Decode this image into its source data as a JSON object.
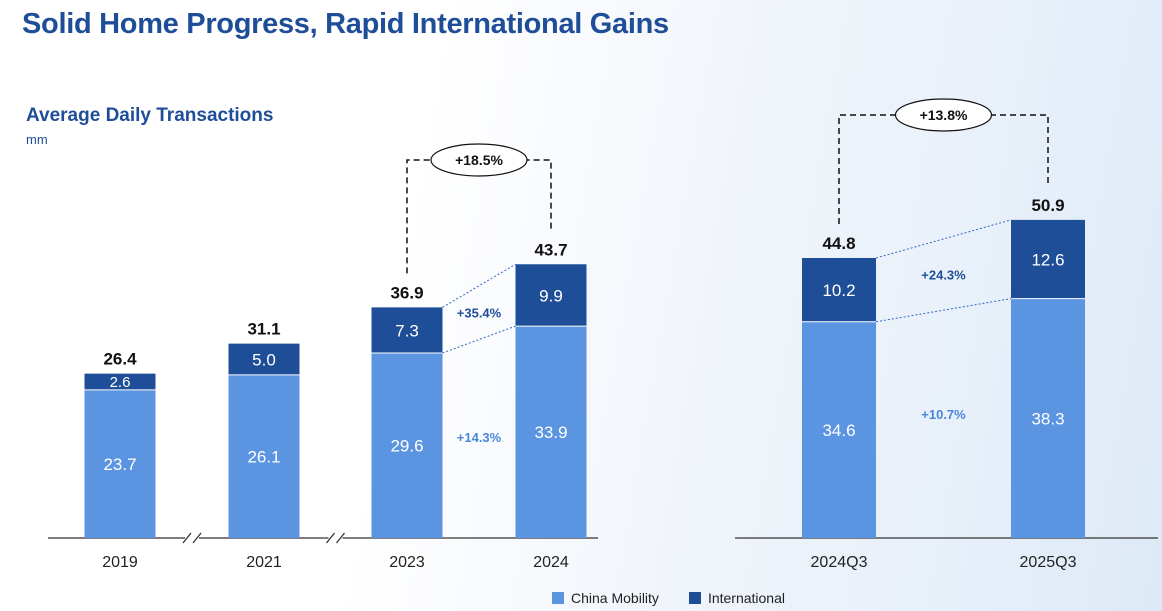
{
  "title": "Solid Home Progress, Rapid International Gains",
  "chart_data": {
    "type": "bar",
    "stacked": true,
    "subtitle": "Average Daily Transactions",
    "unit": "mm",
    "colors": {
      "China Mobility": "#5b94e0",
      "International": "#1f4e99"
    },
    "legend": {
      "position": "bottom",
      "entries": [
        "China Mobility",
        "International"
      ]
    },
    "panels": [
      {
        "categories": [
          "2019",
          "2021",
          "2023",
          "2024"
        ],
        "series": [
          {
            "name": "China Mobility",
            "values": [
              23.7,
              26.1,
              29.6,
              33.9
            ],
            "labels": [
              "23.7",
              "26.1",
              "29.6",
              "33.9"
            ]
          },
          {
            "name": "International",
            "values": [
              2.6,
              5.0,
              7.3,
              9.9
            ],
            "labels": [
              "2.6",
              "5.0",
              "7.3",
              "9.9"
            ]
          }
        ],
        "totals": [
          "26.4",
          "31.1",
          "36.9",
          "43.7"
        ],
        "axis_breaks_after": [
          "2019",
          "2021"
        ],
        "growth_total": "+18.5%",
        "growth_international": "+35.4%",
        "growth_china": "+14.3%"
      },
      {
        "categories": [
          "2024Q3",
          "2025Q3"
        ],
        "series": [
          {
            "name": "China Mobility",
            "values": [
              34.6,
              38.3
            ],
            "labels": [
              "34.6",
              "38.3"
            ]
          },
          {
            "name": "International",
            "values": [
              10.2,
              12.6
            ],
            "labels": [
              "10.2",
              "12.6"
            ]
          }
        ],
        "totals": [
          "44.8",
          "50.9"
        ],
        "growth_total": "+13.8%",
        "growth_international": "+24.3%",
        "growth_china": "+10.7%"
      }
    ]
  }
}
